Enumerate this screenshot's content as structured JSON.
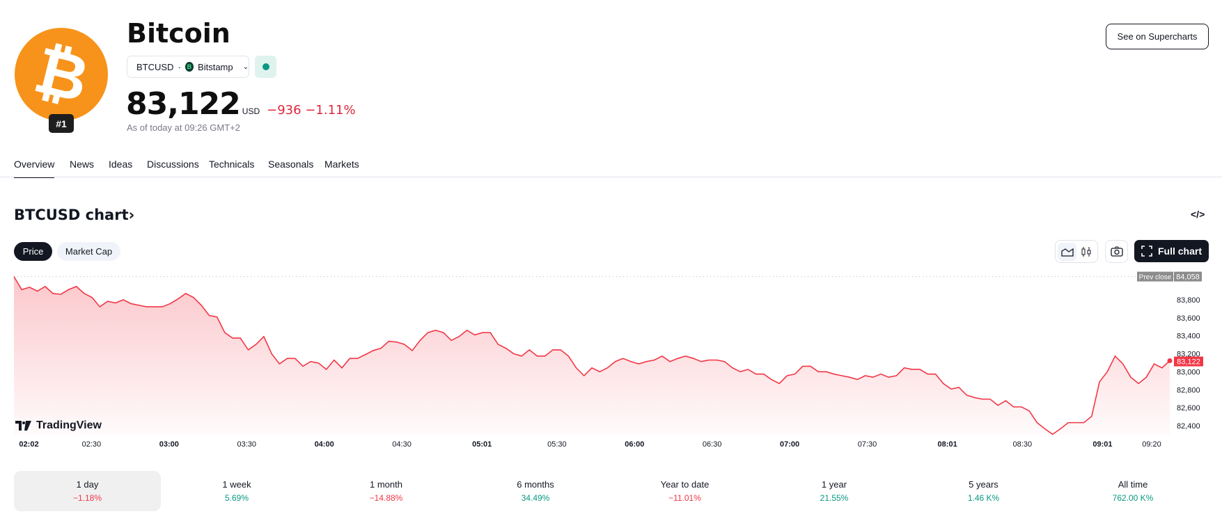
{
  "header": {
    "name": "Bitcoin",
    "rank": "#1",
    "symbol": "BTCUSD",
    "separator": "·",
    "exchange": "Bitstamp",
    "exchange_icon_letter": "B",
    "price": "83,122",
    "currency": "USD",
    "change": "−936",
    "change_pct": "−1.11%",
    "as_of": "As of today at 09:26 GMT+2",
    "supercharts_label": "See on Supercharts",
    "logo_glyph": "₿"
  },
  "tabs": [
    {
      "label": "Overview",
      "active": true
    },
    {
      "label": "News"
    },
    {
      "label": "Ideas"
    },
    {
      "label": "Discussions"
    },
    {
      "label": "Technicals"
    },
    {
      "label": "Seasonals"
    },
    {
      "label": "Markets"
    }
  ],
  "chart_section": {
    "title": "BTCUSD chart",
    "title_arrow": "›",
    "embed_label": "</>",
    "price_pill": "Price",
    "market_cap_pill": "Market Cap",
    "full_chart_label": "Full chart",
    "watermark": "TradingView"
  },
  "colors": {
    "down": "#f23645",
    "up": "#089981",
    "brand": "#f7931a"
  },
  "chart_data": {
    "type": "area",
    "xlabel": "",
    "ylabel": "",
    "x_range_minutes_from_0200": [
      0,
      447
    ],
    "ylim": [
      82280,
      84100
    ],
    "prev_close": 84058,
    "prev_close_label": "Prev close",
    "prev_close_value": "84,058",
    "last_value": 83122,
    "last_value_label": "83,122",
    "y_ticks": [
      {
        "v": 83800,
        "label": "83,800"
      },
      {
        "v": 83600,
        "label": "83,600"
      },
      {
        "v": 83400,
        "label": "83,400"
      },
      {
        "v": 83200,
        "label": "83,200"
      },
      {
        "v": 83000,
        "label": "83,000"
      },
      {
        "v": 82800,
        "label": "82,800"
      },
      {
        "v": 82600,
        "label": "82,600"
      },
      {
        "v": 82400,
        "label": "82,400"
      }
    ],
    "x_ticks": [
      {
        "t": 2,
        "label": "02:02",
        "bold": true
      },
      {
        "t": 30,
        "label": "02:30"
      },
      {
        "t": 60,
        "label": "03:00",
        "bold": true
      },
      {
        "t": 90,
        "label": "03:30"
      },
      {
        "t": 120,
        "label": "04:00",
        "bold": true
      },
      {
        "t": 150,
        "label": "04:30"
      },
      {
        "t": 181,
        "label": "05:01",
        "bold": true
      },
      {
        "t": 210,
        "label": "05:30"
      },
      {
        "t": 240,
        "label": "06:00",
        "bold": true
      },
      {
        "t": 270,
        "label": "06:30"
      },
      {
        "t": 300,
        "label": "07:00",
        "bold": true
      },
      {
        "t": 330,
        "label": "07:30"
      },
      {
        "t": 361,
        "label": "08:01",
        "bold": true
      },
      {
        "t": 390,
        "label": "08:30"
      },
      {
        "t": 421,
        "label": "09:01",
        "bold": true
      },
      {
        "t": 440,
        "label": "09:20"
      }
    ],
    "values": [
      84058,
      83913,
      83939,
      83896,
      83948,
      83870,
      83861,
      83913,
      83948,
      83870,
      83826,
      83722,
      83783,
      83765,
      83800,
      83757,
      83739,
      83722,
      83722,
      83722,
      83757,
      83809,
      83870,
      83826,
      83739,
      83626,
      83609,
      83435,
      83374,
      83374,
      83243,
      83304,
      83391,
      83200,
      83087,
      83148,
      83148,
      83061,
      83113,
      83096,
      83026,
      83130,
      83043,
      83148,
      83148,
      83191,
      83235,
      83261,
      83339,
      83330,
      83304,
      83235,
      83348,
      83435,
      83461,
      83435,
      83348,
      83391,
      83461,
      83409,
      83435,
      83435,
      83304,
      83261,
      83200,
      83174,
      83243,
      83174,
      83174,
      83243,
      83243,
      83174,
      83043,
      82956,
      83043,
      83000,
      83043,
      83113,
      83148,
      83113,
      83087,
      83113,
      83130,
      83174,
      83113,
      83148,
      83174,
      83148,
      83113,
      83130,
      83130,
      83113,
      83043,
      83000,
      83026,
      82974,
      82974,
      82913,
      82869,
      82956,
      82974,
      83061,
      83061,
      83000,
      83000,
      82974,
      82956,
      82939,
      82913,
      82956,
      82939,
      82974,
      82939,
      82956,
      83043,
      83026,
      83026,
      82974,
      82974,
      82869,
      82808,
      82826,
      82739,
      82713,
      82695,
      82695,
      82626,
      82678,
      82609,
      82609,
      82565,
      82434,
      82365,
      82304,
      82365,
      82434,
      82434,
      82434,
      82504,
      82887,
      83000,
      83174,
      83087,
      82939,
      82869,
      82939,
      83087,
      83043,
      83122
    ]
  },
  "performance": [
    {
      "label": "1 day",
      "value": "−1.18%",
      "dir": "down",
      "active": true
    },
    {
      "label": "1 week",
      "value": "5.69%",
      "dir": "up"
    },
    {
      "label": "1 month",
      "value": "−14.88%",
      "dir": "down"
    },
    {
      "label": "6 months",
      "value": "34.49%",
      "dir": "up"
    },
    {
      "label": "Year to date",
      "value": "−11.01%",
      "dir": "down"
    },
    {
      "label": "1 year",
      "value": "21.55%",
      "dir": "up"
    },
    {
      "label": "5 years",
      "value": "1.46 K%",
      "dir": "up"
    },
    {
      "label": "All time",
      "value": "762.00 K%",
      "dir": "up"
    }
  ]
}
